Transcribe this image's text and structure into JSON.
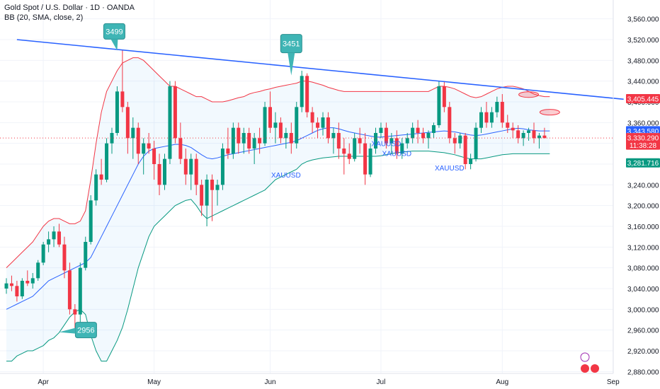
{
  "legend": {
    "title": "Gold Spot / U.S. Dollar · 1D · OANDA",
    "indicator": "BB (20, SMA, close, 2)"
  },
  "chart_data": {
    "type": "candlestick",
    "symbol": "XAUUSD",
    "ylim": [
      2860,
      3580
    ],
    "y_ticks": [
      2880,
      2920,
      2960,
      3000,
      3040,
      3080,
      3120,
      3160,
      3200,
      3240,
      3280,
      3320,
      3360,
      3400,
      3440,
      3480,
      3520,
      3560
    ],
    "y_tick_labels": [
      "2,880.000",
      "2,920.000",
      "2,960.000",
      "3,000.000",
      "3,040.000",
      "3,080.000",
      "3,120.000",
      "3,160.000",
      "3,200.000",
      "3,240.000",
      "3,280.000",
      "3,320.000",
      "3,360.000",
      "3,400.000",
      "3,440.000",
      "3,480.000",
      "3,520.000",
      "3,560.000"
    ],
    "x_labels": [
      {
        "label": "Apr",
        "index": 7
      },
      {
        "label": "May",
        "index": 28
      },
      {
        "label": "Jun",
        "index": 50
      },
      {
        "label": "Jul",
        "index": 71
      },
      {
        "label": "Aug",
        "index": 94
      },
      {
        "label": "Sep",
        "index": 115
      }
    ],
    "candles": [
      [
        3040,
        3060,
        3030,
        3050
      ],
      [
        3050,
        3065,
        3035,
        3045
      ],
      [
        3045,
        3055,
        3015,
        3025
      ],
      [
        3025,
        3060,
        3020,
        3055
      ],
      [
        3055,
        3075,
        3045,
        3050
      ],
      [
        3050,
        3070,
        3040,
        3060
      ],
      [
        3060,
        3095,
        3055,
        3090
      ],
      [
        3090,
        3130,
        3085,
        3125
      ],
      [
        3125,
        3150,
        3110,
        3135
      ],
      [
        3135,
        3160,
        3120,
        3150
      ],
      [
        3150,
        3165,
        3120,
        3125
      ],
      [
        3125,
        3140,
        3060,
        3075
      ],
      [
        3075,
        3090,
        2990,
        3000
      ],
      [
        3000,
        3010,
        2960,
        2990
      ],
      [
        2990,
        3090,
        2975,
        3080
      ],
      [
        3080,
        3140,
        3075,
        3130
      ],
      [
        3130,
        3220,
        3125,
        3210
      ],
      [
        3210,
        3270,
        3200,
        3260
      ],
      [
        3260,
        3290,
        3240,
        3250
      ],
      [
        3250,
        3330,
        3245,
        3320
      ],
      [
        3320,
        3350,
        3300,
        3340
      ],
      [
        3340,
        3430,
        3335,
        3420
      ],
      [
        3420,
        3500,
        3380,
        3390
      ],
      [
        3390,
        3400,
        3300,
        3330
      ],
      [
        3330,
        3370,
        3290,
        3350
      ],
      [
        3350,
        3360,
        3280,
        3300
      ],
      [
        3300,
        3330,
        3260,
        3320
      ],
      [
        3320,
        3340,
        3300,
        3310
      ],
      [
        3310,
        3325,
        3250,
        3280
      ],
      [
        3280,
        3300,
        3220,
        3240
      ],
      [
        3240,
        3300,
        3230,
        3290
      ],
      [
        3290,
        3440,
        3280,
        3430
      ],
      [
        3430,
        3440,
        3320,
        3330
      ],
      [
        3330,
        3360,
        3280,
        3290
      ],
      [
        3290,
        3310,
        3240,
        3260
      ],
      [
        3260,
        3300,
        3230,
        3290
      ],
      [
        3290,
        3300,
        3220,
        3240
      ],
      [
        3240,
        3250,
        3180,
        3200
      ],
      [
        3200,
        3260,
        3160,
        3250
      ],
      [
        3250,
        3260,
        3170,
        3230
      ],
      [
        3230,
        3250,
        3200,
        3240
      ],
      [
        3240,
        3320,
        3230,
        3310
      ],
      [
        3310,
        3350,
        3290,
        3300
      ],
      [
        3300,
        3360,
        3290,
        3350
      ],
      [
        3350,
        3360,
        3300,
        3320
      ],
      [
        3320,
        3350,
        3300,
        3340
      ],
      [
        3340,
        3350,
        3300,
        3310
      ],
      [
        3310,
        3340,
        3280,
        3330
      ],
      [
        3330,
        3350,
        3300,
        3320
      ],
      [
        3320,
        3400,
        3315,
        3390
      ],
      [
        3390,
        3420,
        3340,
        3350
      ],
      [
        3350,
        3380,
        3320,
        3360
      ],
      [
        3360,
        3370,
        3320,
        3330
      ],
      [
        3330,
        3350,
        3310,
        3340
      ],
      [
        3340,
        3360,
        3300,
        3320
      ],
      [
        3320,
        3400,
        3310,
        3390
      ],
      [
        3390,
        3460,
        3380,
        3450
      ],
      [
        3450,
        3455,
        3370,
        3380
      ],
      [
        3380,
        3390,
        3340,
        3360
      ],
      [
        3360,
        3370,
        3330,
        3350
      ],
      [
        3350,
        3380,
        3335,
        3370
      ],
      [
        3370,
        3380,
        3320,
        3330
      ],
      [
        3330,
        3350,
        3300,
        3340
      ],
      [
        3340,
        3360,
        3290,
        3310
      ],
      [
        3310,
        3330,
        3260,
        3300
      ],
      [
        3300,
        3320,
        3280,
        3290
      ],
      [
        3290,
        3340,
        3285,
        3330
      ],
      [
        3330,
        3350,
        3300,
        3320
      ],
      [
        3320,
        3340,
        3240,
        3260
      ],
      [
        3260,
        3320,
        3255,
        3310
      ],
      [
        3310,
        3350,
        3300,
        3340
      ],
      [
        3340,
        3360,
        3330,
        3350
      ],
      [
        3350,
        3360,
        3310,
        3320
      ],
      [
        3320,
        3340,
        3300,
        3330
      ],
      [
        3330,
        3345,
        3290,
        3300
      ],
      [
        3300,
        3330,
        3290,
        3320
      ],
      [
        3320,
        3340,
        3310,
        3330
      ],
      [
        3330,
        3360,
        3320,
        3350
      ],
      [
        3350,
        3365,
        3320,
        3340
      ],
      [
        3340,
        3350,
        3320,
        3330
      ],
      [
        3330,
        3345,
        3310,
        3340
      ],
      [
        3340,
        3360,
        3330,
        3355
      ],
      [
        3355,
        3440,
        3350,
        3430
      ],
      [
        3430,
        3440,
        3380,
        3390
      ],
      [
        3390,
        3400,
        3320,
        3330
      ],
      [
        3330,
        3340,
        3300,
        3320
      ],
      [
        3320,
        3340,
        3310,
        3335
      ],
      [
        3335,
        3340,
        3270,
        3280
      ],
      [
        3280,
        3300,
        3270,
        3290
      ],
      [
        3290,
        3360,
        3285,
        3350
      ],
      [
        3350,
        3390,
        3340,
        3380
      ],
      [
        3380,
        3400,
        3350,
        3360
      ],
      [
        3360,
        3390,
        3350,
        3380
      ],
      [
        3380,
        3410,
        3370,
        3400
      ],
      [
        3400,
        3415,
        3350,
        3360
      ],
      [
        3360,
        3375,
        3340,
        3350
      ],
      [
        3350,
        3360,
        3330,
        3345
      ],
      [
        3345,
        3355,
        3320,
        3330
      ],
      [
        3330,
        3345,
        3315,
        3340
      ],
      [
        3340,
        3350,
        3325,
        3345
      ],
      [
        3345,
        3360,
        3320,
        3330
      ],
      [
        3330,
        3340,
        3310,
        3335
      ],
      [
        3335,
        3350,
        3330,
        3330
      ]
    ],
    "bb_upper": [
      3080,
      3090,
      3100,
      3110,
      3120,
      3130,
      3145,
      3160,
      3170,
      3175,
      3175,
      3170,
      3165,
      3165,
      3170,
      3190,
      3250,
      3320,
      3380,
      3420,
      3440,
      3460,
      3475,
      3480,
      3485,
      3485,
      3480,
      3470,
      3460,
      3450,
      3440,
      3430,
      3430,
      3425,
      3420,
      3415,
      3410,
      3410,
      3405,
      3400,
      3400,
      3400,
      3402,
      3405,
      3408,
      3410,
      3415,
      3418,
      3420,
      3423,
      3425,
      3428,
      3430,
      3432,
      3434,
      3436,
      3440,
      3440,
      3438,
      3435,
      3432,
      3428,
      3425,
      3422,
      3420,
      3420,
      3420,
      3420,
      3420,
      3420,
      3420,
      3420,
      3420,
      3420,
      3420,
      3420,
      3420,
      3420,
      3420,
      3420,
      3420,
      3425,
      3430,
      3430,
      3428,
      3425,
      3420,
      3415,
      3410,
      3408,
      3410,
      3415,
      3420,
      3425,
      3428,
      3430,
      3430,
      3428,
      3425,
      3420,
      3415,
      3412,
      3410,
      3410
    ],
    "bb_middle": [
      3000,
      3005,
      3010,
      3015,
      3020,
      3025,
      3035,
      3045,
      3055,
      3060,
      3065,
      3070,
      3075,
      3080,
      3085,
      3090,
      3100,
      3120,
      3140,
      3160,
      3180,
      3200,
      3220,
      3240,
      3260,
      3280,
      3295,
      3305,
      3310,
      3312,
      3314,
      3316,
      3318,
      3318,
      3316,
      3312,
      3305,
      3298,
      3292,
      3290,
      3292,
      3295,
      3298,
      3300,
      3302,
      3304,
      3306,
      3308,
      3310,
      3312,
      3314,
      3316,
      3318,
      3320,
      3322,
      3325,
      3330,
      3335,
      3340,
      3345,
      3348,
      3350,
      3350,
      3348,
      3345,
      3342,
      3340,
      3338,
      3336,
      3334,
      3332,
      3332,
      3333,
      3334,
      3335,
      3336,
      3337,
      3338,
      3339,
      3340,
      3341,
      3342,
      3343,
      3344,
      3343,
      3342,
      3340,
      3338,
      3336,
      3335,
      3336,
      3338,
      3340,
      3342,
      3344,
      3346,
      3348,
      3349,
      3348,
      3346,
      3345,
      3344,
      3344,
      3344
    ],
    "bb_lower": [
      2900,
      2900,
      2910,
      2915,
      2920,
      2920,
      2925,
      2930,
      2940,
      2945,
      2955,
      2970,
      2985,
      2995,
      3000,
      2990,
      2950,
      2920,
      2900,
      2900,
      2920,
      2940,
      2965,
      3000,
      3040,
      3080,
      3110,
      3140,
      3160,
      3170,
      3180,
      3190,
      3200,
      3205,
      3210,
      3212,
      3200,
      3185,
      3175,
      3180,
      3185,
      3190,
      3195,
      3200,
      3205,
      3210,
      3215,
      3220,
      3225,
      3230,
      3240,
      3250,
      3255,
      3260,
      3265,
      3270,
      3280,
      3285,
      3288,
      3290,
      3292,
      3293,
      3294,
      3295,
      3295,
      3295,
      3295,
      3295,
      3295,
      3295,
      3295,
      3296,
      3298,
      3300,
      3302,
      3303,
      3304,
      3305,
      3305,
      3305,
      3305,
      3304,
      3303,
      3302,
      3300,
      3298,
      3295,
      3292,
      3290,
      3290,
      3290,
      3292,
      3294,
      3296,
      3298,
      3299,
      3300,
      3300,
      3300,
      3300,
      3300,
      3300,
      3300,
      3300
    ],
    "trendline": {
      "from": [
        2,
        3520
      ],
      "to": [
        117,
        3405
      ]
    },
    "annotations": [
      {
        "label": "3499",
        "index": 21,
        "value": 3499
      },
      {
        "label": "3451",
        "index": 54,
        "value": 3451
      },
      {
        "label": "2956",
        "index": 12,
        "value": 2956
      }
    ],
    "text_labels": [
      {
        "label": "XAUUSD",
        "index": 53,
        "value": 3254
      },
      {
        "label": "XAUUSD",
        "index": 72,
        "value": 3315
      },
      {
        "label": "XAUUSD",
        "index": 74,
        "value": 3296
      },
      {
        "label": "XAUUSD",
        "index": 84,
        "value": 3268
      }
    ],
    "price_labels": [
      {
        "label": "3,405.445",
        "value": 3405.445,
        "color": "#f23645"
      },
      {
        "label": "3,343.580",
        "value": 3343.58,
        "color": "#2962ff"
      },
      {
        "label": "3,330.290",
        "value": 3330.29,
        "color": "#f23645"
      },
      {
        "label": "11:38:28",
        "value": 3316,
        "color": "#f23645"
      },
      {
        "label": "3,281.716",
        "value": 3281.716,
        "color": "#089981"
      }
    ],
    "colors": {
      "up": "#089981",
      "down": "#f23645",
      "bb_upper": "#f23645",
      "bb_middle": "#2962ff",
      "bb_lower": "#089981",
      "trendline": "#2962ff",
      "annotation": "#3fb5b5"
    }
  }
}
